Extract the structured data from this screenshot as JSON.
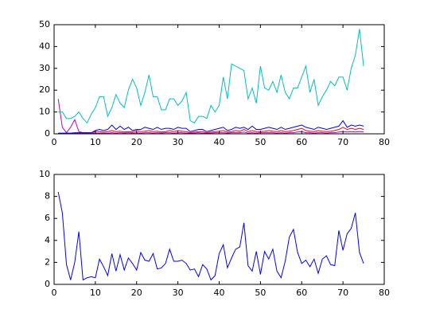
{
  "chart_data": [
    {
      "type": "line",
      "x": [
        1,
        2,
        3,
        4,
        5,
        6,
        7,
        8,
        9,
        10,
        11,
        12,
        13,
        14,
        15,
        16,
        17,
        18,
        19,
        20,
        21,
        22,
        23,
        24,
        25,
        26,
        27,
        28,
        29,
        30,
        31,
        32,
        33,
        34,
        35,
        36,
        37,
        38,
        39,
        40,
        41,
        42,
        43,
        44,
        45,
        46,
        47,
        48,
        49,
        50,
        51,
        52,
        53,
        54,
        55,
        56,
        57,
        58,
        59,
        60,
        61,
        62,
        63,
        64,
        65,
        66,
        67,
        68,
        69,
        70,
        71,
        72,
        73,
        74,
        75
      ],
      "series": [
        {
          "color": "#bf00bf",
          "values": [
            16,
            3,
            0.5,
            3,
            6.5,
            1,
            0.5,
            0.5,
            0.3,
            0.3,
            0.3,
            0.3,
            0.3,
            0.5,
            0.3,
            0.5,
            0.3,
            0.5,
            0.3,
            0.5,
            0.3,
            0.5,
            0.5,
            0.3,
            0.5,
            0.3,
            0.5,
            0.5,
            0.3,
            0.5,
            0.5,
            0.3,
            0.3,
            0.3,
            0.5,
            0.3,
            0.3,
            0.3,
            0.5,
            0.5,
            0.5,
            0.3,
            0.5,
            0.5,
            0.5,
            0.8,
            0.3,
            0.5,
            0.3,
            0.5,
            0.5,
            0.5,
            0.5,
            0.3,
            0.5,
            0.3,
            0.5,
            0.5,
            0.8,
            1,
            0.5,
            0.5,
            0.3,
            0.5,
            0.5,
            0.3,
            0.5,
            0.5,
            0.8,
            1,
            0.8,
            1,
            0.8,
            1,
            0.8
          ]
        },
        {
          "color": "#ff0000",
          "values": [
            0.2,
            0.2,
            0.2,
            0.2,
            0.3,
            0.3,
            0.3,
            0.3,
            0.5,
            1,
            1,
            0.8,
            1,
            1.5,
            1,
            1.2,
            0.8,
            1,
            0.8,
            1.5,
            1,
            1.2,
            1.5,
            1,
            1.2,
            0.8,
            1,
            1.5,
            1,
            1.5,
            1.2,
            1,
            0.5,
            0.8,
            1,
            1,
            0.5,
            0.8,
            1,
            1.2,
            1.5,
            0.8,
            1,
            1.5,
            1.2,
            2,
            1,
            1.5,
            1,
            1,
            1.2,
            1.5,
            1.2,
            1,
            1.5,
            1,
            1.2,
            1.5,
            2,
            2.5,
            1.5,
            1.2,
            1,
            1.5,
            1.2,
            1,
            1.2,
            1.5,
            2,
            3,
            2,
            2.5,
            2,
            2.5,
            2
          ]
        },
        {
          "color": "#0000ff",
          "values": [
            0.3,
            0.3,
            0.3,
            0.3,
            0.5,
            0.5,
            0.5,
            0.5,
            0.5,
            1.5,
            2,
            1.5,
            2,
            4,
            2,
            3.5,
            2,
            3,
            1.5,
            2,
            2,
            3,
            2.5,
            2,
            3,
            2,
            2.5,
            2.5,
            2,
            3,
            2.5,
            2.5,
            1,
            1.5,
            2,
            2,
            1,
            1.5,
            2,
            2.5,
            3,
            1.5,
            2,
            3,
            2.5,
            3,
            2,
            3.5,
            2,
            2,
            2.5,
            3,
            2.5,
            2,
            3,
            2,
            2.5,
            3,
            3.5,
            4,
            3,
            2.5,
            2,
            3,
            2.5,
            2,
            2.5,
            3,
            3.5,
            6,
            3,
            4,
            3.5,
            4,
            3.5
          ]
        },
        {
          "color": "#00bfbf",
          "values": [
            10,
            10,
            7,
            7,
            8,
            10,
            7,
            5,
            9,
            12,
            17,
            17,
            8,
            12,
            18,
            14,
            12,
            20,
            25,
            21,
            13,
            19,
            27,
            17,
            17,
            11,
            11,
            16,
            16,
            13,
            15,
            19,
            6,
            5,
            8,
            8,
            7,
            13,
            10,
            13,
            26,
            16,
            32,
            31,
            30,
            29,
            16,
            21,
            14,
            31,
            21,
            20,
            24,
            19,
            27,
            19,
            16,
            21,
            21,
            26,
            31,
            19,
            25,
            13,
            17,
            20,
            24,
            22,
            26,
            26,
            20,
            30,
            36,
            48,
            31
          ]
        }
      ],
      "xlim": [
        0,
        80
      ],
      "xticks": [
        0,
        10,
        20,
        30,
        40,
        50,
        60,
        70,
        80
      ],
      "ylim": [
        0,
        50
      ],
      "yticks": [
        0,
        10,
        20,
        30,
        40,
        50
      ]
    },
    {
      "type": "line",
      "x": [
        1,
        2,
        3,
        4,
        5,
        6,
        7,
        8,
        9,
        10,
        11,
        12,
        13,
        14,
        15,
        16,
        17,
        18,
        19,
        20,
        21,
        22,
        23,
        24,
        25,
        26,
        27,
        28,
        29,
        30,
        31,
        32,
        33,
        34,
        35,
        36,
        37,
        38,
        39,
        40,
        41,
        42,
        43,
        44,
        45,
        46,
        47,
        48,
        49,
        50,
        51,
        52,
        53,
        54,
        55,
        56,
        57,
        58,
        59,
        60,
        61,
        62,
        63,
        64,
        65,
        66,
        67,
        68,
        69,
        70,
        71,
        72,
        73,
        74,
        75
      ],
      "series": [
        {
          "color": "#0000ff",
          "values": [
            8.4,
            6.5,
            1.8,
            0.4,
            2.0,
            4.8,
            0.4,
            0.6,
            0.7,
            0.6,
            2.3,
            1.6,
            0.8,
            2.8,
            1.2,
            2.7,
            1.3,
            2.4,
            1.9,
            1.3,
            2.9,
            2.2,
            2.1,
            2.8,
            1.4,
            1.5,
            1.9,
            3.2,
            2.1,
            2.1,
            2.2,
            1.9,
            1.3,
            1.4,
            0.7,
            1.8,
            1.4,
            0.4,
            0.8,
            2.8,
            3.6,
            1.5,
            2.4,
            3.2,
            3.4,
            5.6,
            1.7,
            1.2,
            3.0,
            0.9,
            3.0,
            2.3,
            3.2,
            1.2,
            0.6,
            2.1,
            4.3,
            5.0,
            2.9,
            1.9,
            2.2,
            1.6,
            2.3,
            1.0,
            2.3,
            2.6,
            1.8,
            1.7,
            4.9,
            3.1,
            4.6,
            5.1,
            6.5,
            2.9,
            1.9
          ]
        }
      ],
      "xlim": [
        0,
        80
      ],
      "xticks": [
        0,
        10,
        20,
        30,
        40,
        50,
        60,
        70,
        80
      ],
      "ylim": [
        0,
        10
      ],
      "yticks": [
        0,
        2,
        4,
        6,
        8,
        10
      ]
    }
  ]
}
